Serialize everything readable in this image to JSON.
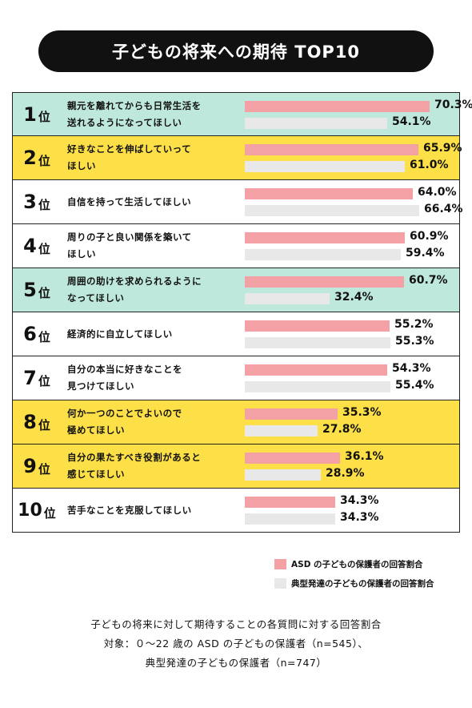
{
  "title": "子どもの将来への期待 TOP10",
  "colors": {
    "asd_bar": "#f4a1a6",
    "typical_bar": "#e8e8e8",
    "teal_row": "#bfe8dc",
    "yellow_row": "#fde047",
    "white_row": "#ffffff"
  },
  "legend": {
    "asd": "ASD の子どもの保護者の回答割合",
    "typical": "典型発達の子どもの保護者の回答割合"
  },
  "footnote": {
    "line1": "子どもの将来に対して期待することの各質問に対する回答割合",
    "line2": "対象：０～22 歳の ASD の子どもの保護者（n=545）、",
    "line3": "典型発達の子どもの保護者（n=747）"
  },
  "chart_data": {
    "type": "bar",
    "orientation": "horizontal",
    "title": "子どもの将来への期待 TOP10",
    "categories": [
      {
        "rank": "1",
        "suffix": "位",
        "label": "親元を離れてからも日常生活を\n送れるようになってほしい",
        "row_color": "teal"
      },
      {
        "rank": "2",
        "suffix": "位",
        "label": "好きなことを伸ばしていって\nほしい",
        "row_color": "yellow"
      },
      {
        "rank": "3",
        "suffix": "位",
        "label": "自信を持って生活してほしい",
        "row_color": "white"
      },
      {
        "rank": "4",
        "suffix": "位",
        "label": "周りの子と良い関係を築いて\nほしい",
        "row_color": "white"
      },
      {
        "rank": "5",
        "suffix": "位",
        "label": "周囲の助けを求められるように\nなってほしい",
        "row_color": "teal"
      },
      {
        "rank": "6",
        "suffix": "位",
        "label": "経済的に自立してほしい",
        "row_color": "white"
      },
      {
        "rank": "7",
        "suffix": "位",
        "label": "自分の本当に好きなことを\n見つけてほしい",
        "row_color": "white"
      },
      {
        "rank": "8",
        "suffix": "位",
        "label": "何か一つのことでよいので\n極めてほしい",
        "row_color": "yellow"
      },
      {
        "rank": "9",
        "suffix": "位",
        "label": "自分の果たすべき役割があると\n感じてほしい",
        "row_color": "yellow"
      },
      {
        "rank": "10",
        "suffix": "位",
        "label": "苦手なことを克服してほしい",
        "row_color": "white"
      }
    ],
    "series": [
      {
        "name": "ASD の子どもの保護者の回答割合",
        "values": [
          70.3,
          65.9,
          64.0,
          60.9,
          60.7,
          55.2,
          54.3,
          35.3,
          36.1,
          34.3
        ],
        "labels": [
          "70.3%",
          "65.9%",
          "64.0%",
          "60.9%",
          "60.7%",
          "55.2%",
          "54.3%",
          "35.3%",
          "36.1%",
          "34.3%"
        ]
      },
      {
        "name": "典型発達の子どもの保護者の回答割合",
        "values": [
          54.1,
          61.0,
          66.4,
          59.4,
          32.4,
          55.3,
          55.4,
          27.8,
          28.9,
          34.3
        ],
        "labels": [
          "54.1%",
          "61.0%",
          "66.4%",
          "59.4%",
          "32.4%",
          "55.3%",
          "55.4%",
          "27.8%",
          "28.9%",
          "34.3%"
        ]
      }
    ],
    "unit": "%",
    "xlim": [
      0,
      70.3
    ]
  }
}
